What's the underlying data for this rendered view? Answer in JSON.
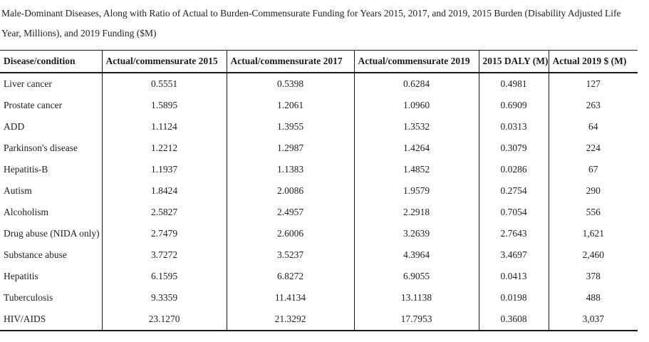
{
  "colors": {
    "background": "#ffffff",
    "text": "#222222",
    "border": "#1a1a1a"
  },
  "chart_data": {
    "type": "table",
    "title": "Male-Dominant Diseases, Along with Ratio of Actual to Burden-Commensurate Funding for Years 2015, 2017, and 2019, 2015 Burden (Disability Adjusted Life Year, Millions), and 2019 Funding ($M)",
    "columns": [
      "Disease/condition",
      "Actual/commensurate 2015",
      "Actual/commensurate 2017",
      "Actual/commensurate 2019",
      "2015 DALY (M)",
      "Actual 2019 $ (M)"
    ],
    "rows": [
      [
        "Liver cancer",
        "0.5551",
        "0.5398",
        "0.6284",
        "0.4981",
        "127"
      ],
      [
        "Prostate cancer",
        "1.5895",
        "1.2061",
        "1.0960",
        "0.6909",
        "263"
      ],
      [
        "ADD",
        "1.1124",
        "1.3955",
        "1.3532",
        "0.0313",
        "64"
      ],
      [
        "Parkinson's disease",
        "1.2212",
        "1.2987",
        "1.4264",
        "0.3079",
        "224"
      ],
      [
        "Hepatitis-B",
        "1.1937",
        "1.1383",
        "1.4852",
        "0.0286",
        "67"
      ],
      [
        "Autism",
        "1.8424",
        "2.0086",
        "1.9579",
        "0.2754",
        "290"
      ],
      [
        "Alcoholism",
        "2.5827",
        "2.4957",
        "2.2918",
        "0.7054",
        "556"
      ],
      [
        "Drug abuse (NIDA only)",
        "2.7479",
        "2.6006",
        "3.2639",
        "2.7643",
        "1,621"
      ],
      [
        "Substance abuse",
        "3.7272",
        "3.5237",
        "4.3964",
        "3.4697",
        "2,460"
      ],
      [
        "Hepatitis",
        "6.1595",
        "6.8272",
        "6.9055",
        "0.0413",
        "378"
      ],
      [
        "Tuberculosis",
        "9.3359",
        "11.4134",
        "13.1138",
        "0.0198",
        "488"
      ],
      [
        "HIV/AIDS",
        "23.1270",
        "21.3292",
        "17.7953",
        "0.3608",
        "3,037"
      ]
    ]
  }
}
